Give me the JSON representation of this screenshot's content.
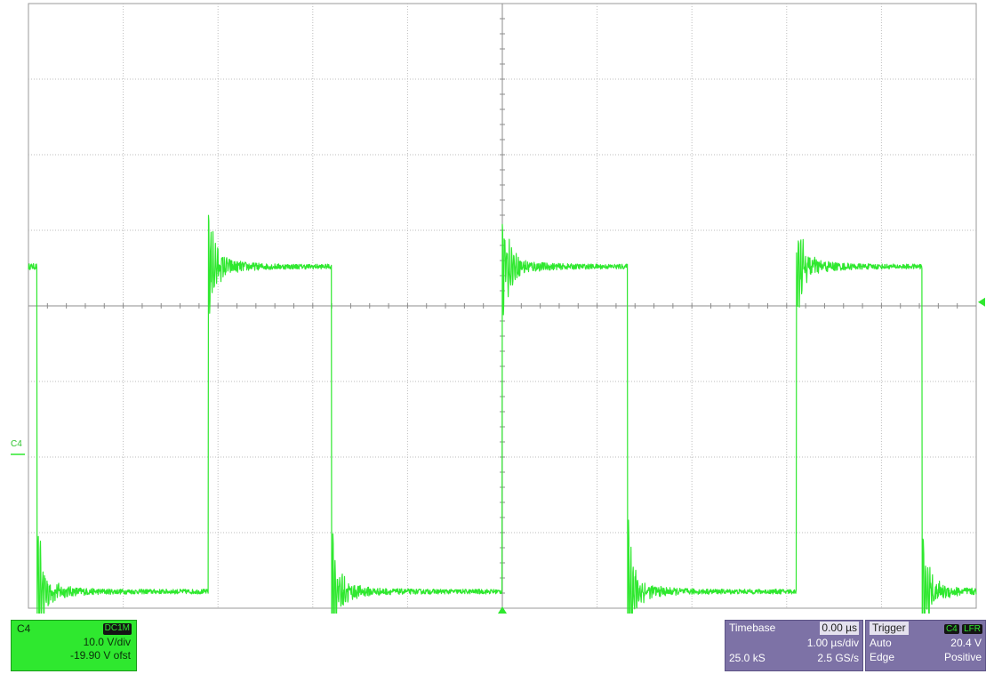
{
  "chart_data": {
    "type": "line",
    "title": "",
    "xlabel": "",
    "ylabel": "",
    "grid": true,
    "divisions": {
      "x": 10,
      "y": 8
    },
    "x_unit": "µs",
    "xlim": [
      -5.0,
      5.0
    ],
    "y_unit": "V",
    "ylim": [
      -20.1,
      59.9
    ],
    "series": [
      {
        "channel": "C4",
        "color": "#2fe82f",
        "low_level_V": -17.9,
        "high_level_V": 25.1,
        "spike_min_V": -27.5,
        "spike_max_V": 32.7,
        "edges": [
          {
            "t_us": -4.91,
            "dir": "fall"
          },
          {
            "t_us": -3.1,
            "dir": "rise"
          },
          {
            "t_us": -1.8,
            "dir": "fall"
          },
          {
            "t_us": 0.0,
            "dir": "rise"
          },
          {
            "t_us": 1.32,
            "dir": "fall"
          },
          {
            "t_us": 3.1,
            "dir": "rise"
          },
          {
            "t_us": 4.43,
            "dir": "fall"
          }
        ]
      }
    ]
  },
  "markers": {
    "channel_label": "C4",
    "trigger_level_V": 20.4
  },
  "channel_panel": {
    "name": "C4",
    "coupling": "DC1M",
    "scale": "10.0 V/div",
    "offset": "-19.90 V ofst"
  },
  "timebase_panel": {
    "label": "Timebase",
    "delay": "0.00 µs",
    "scale": "1.00 µs/div",
    "samples": "25.0 kS",
    "rate": "2.5 GS/s"
  },
  "trigger_panel": {
    "label": "Trigger",
    "source": "C4",
    "filter": "LFR",
    "mode": "Auto",
    "level": "20.4 V",
    "type": "Edge",
    "slope": "Positive"
  },
  "colors": {
    "trace": "#2fe82f",
    "grid": "#bdbdbd",
    "frame": "#9a9a9a",
    "panel_purple": "#7d72a6"
  }
}
